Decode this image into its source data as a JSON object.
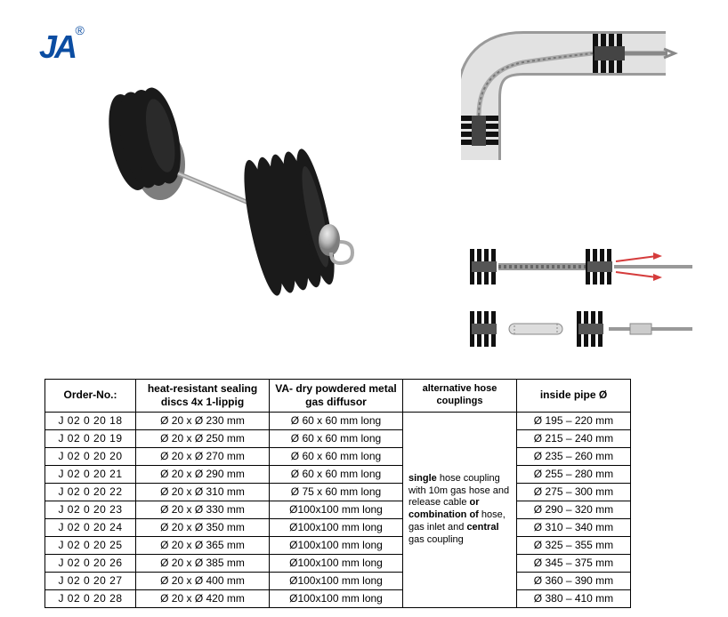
{
  "logo": {
    "text": "JA",
    "registered": "®",
    "color": "#0b4da2"
  },
  "table": {
    "headers": {
      "order": "Order-No.:",
      "discs": "heat-resistant sealing discs 4x 1-lippig",
      "diffusor": "VA- dry powdered metal gas diffusor",
      "alt": "alternative hose couplings",
      "pipe": "inside pipe Ø"
    },
    "alt_html": "<b>single</b> hose coupling with 10m gas hose and release cable <b>or combination of</b> hose, gas inlet and <b>central</b> gas coupling",
    "rows": [
      {
        "order": "J 02 0 20 18",
        "discs": "Ø 20 x Ø 230 mm",
        "diffusor": "Ø 60 x 60 mm long",
        "pipe": "Ø 195 – 220 mm"
      },
      {
        "order": "J 02 0 20 19",
        "discs": "Ø 20 x Ø 250 mm",
        "diffusor": "Ø 60 x 60 mm long",
        "pipe": "Ø 215 – 240 mm"
      },
      {
        "order": "J 02 0 20 20",
        "discs": "Ø 20 x Ø 270 mm",
        "diffusor": "Ø 60 x 60 mm long",
        "pipe": "Ø 235 – 260 mm"
      },
      {
        "order": "J 02 0 20 21",
        "discs": "Ø 20 x Ø 290 mm",
        "diffusor": "Ø 60 x 60 mm long",
        "pipe": "Ø 255 – 280 mm"
      },
      {
        "order": "J 02 0 20 22",
        "discs": "Ø 20 x Ø 310 mm",
        "diffusor": "Ø 75 x 60 mm long",
        "pipe": "Ø 275 – 300 mm"
      },
      {
        "order": "J 02 0 20 23",
        "discs": "Ø 20 x Ø 330 mm",
        "diffusor": "Ø100x100 mm long",
        "pipe": "Ø 290 – 320 mm"
      },
      {
        "order": "J 02 0 20 24",
        "discs": "Ø 20 x Ø 350 mm",
        "diffusor": "Ø100x100 mm long",
        "pipe": "Ø 310 – 340 mm"
      },
      {
        "order": "J 02 0 20 25",
        "discs": "Ø 20 x Ø 365 mm",
        "diffusor": "Ø100x100 mm long",
        "pipe": "Ø 325 – 355 mm"
      },
      {
        "order": "J 02 0 20 26",
        "discs": "Ø 20 x Ø 385 mm",
        "diffusor": "Ø100x100 mm long",
        "pipe": "Ø 345 – 375 mm"
      },
      {
        "order": "J 02 0 20 27",
        "discs": "Ø 20 x Ø 400 mm",
        "diffusor": "Ø100x100 mm long",
        "pipe": "Ø 360 – 390 mm"
      },
      {
        "order": "J 02 0 20 28",
        "discs": "Ø 20 x Ø 420 mm",
        "diffusor": "Ø100x100 mm long",
        "pipe": "Ø 380 – 410 mm"
      }
    ]
  },
  "colors": {
    "disc": "#1a1a1a",
    "metal": "#b9b9b9",
    "metal_dark": "#888888",
    "pipe": "#dcdcdc",
    "pipe_edge": "#9a9a9a",
    "red": "#d53c3c"
  }
}
